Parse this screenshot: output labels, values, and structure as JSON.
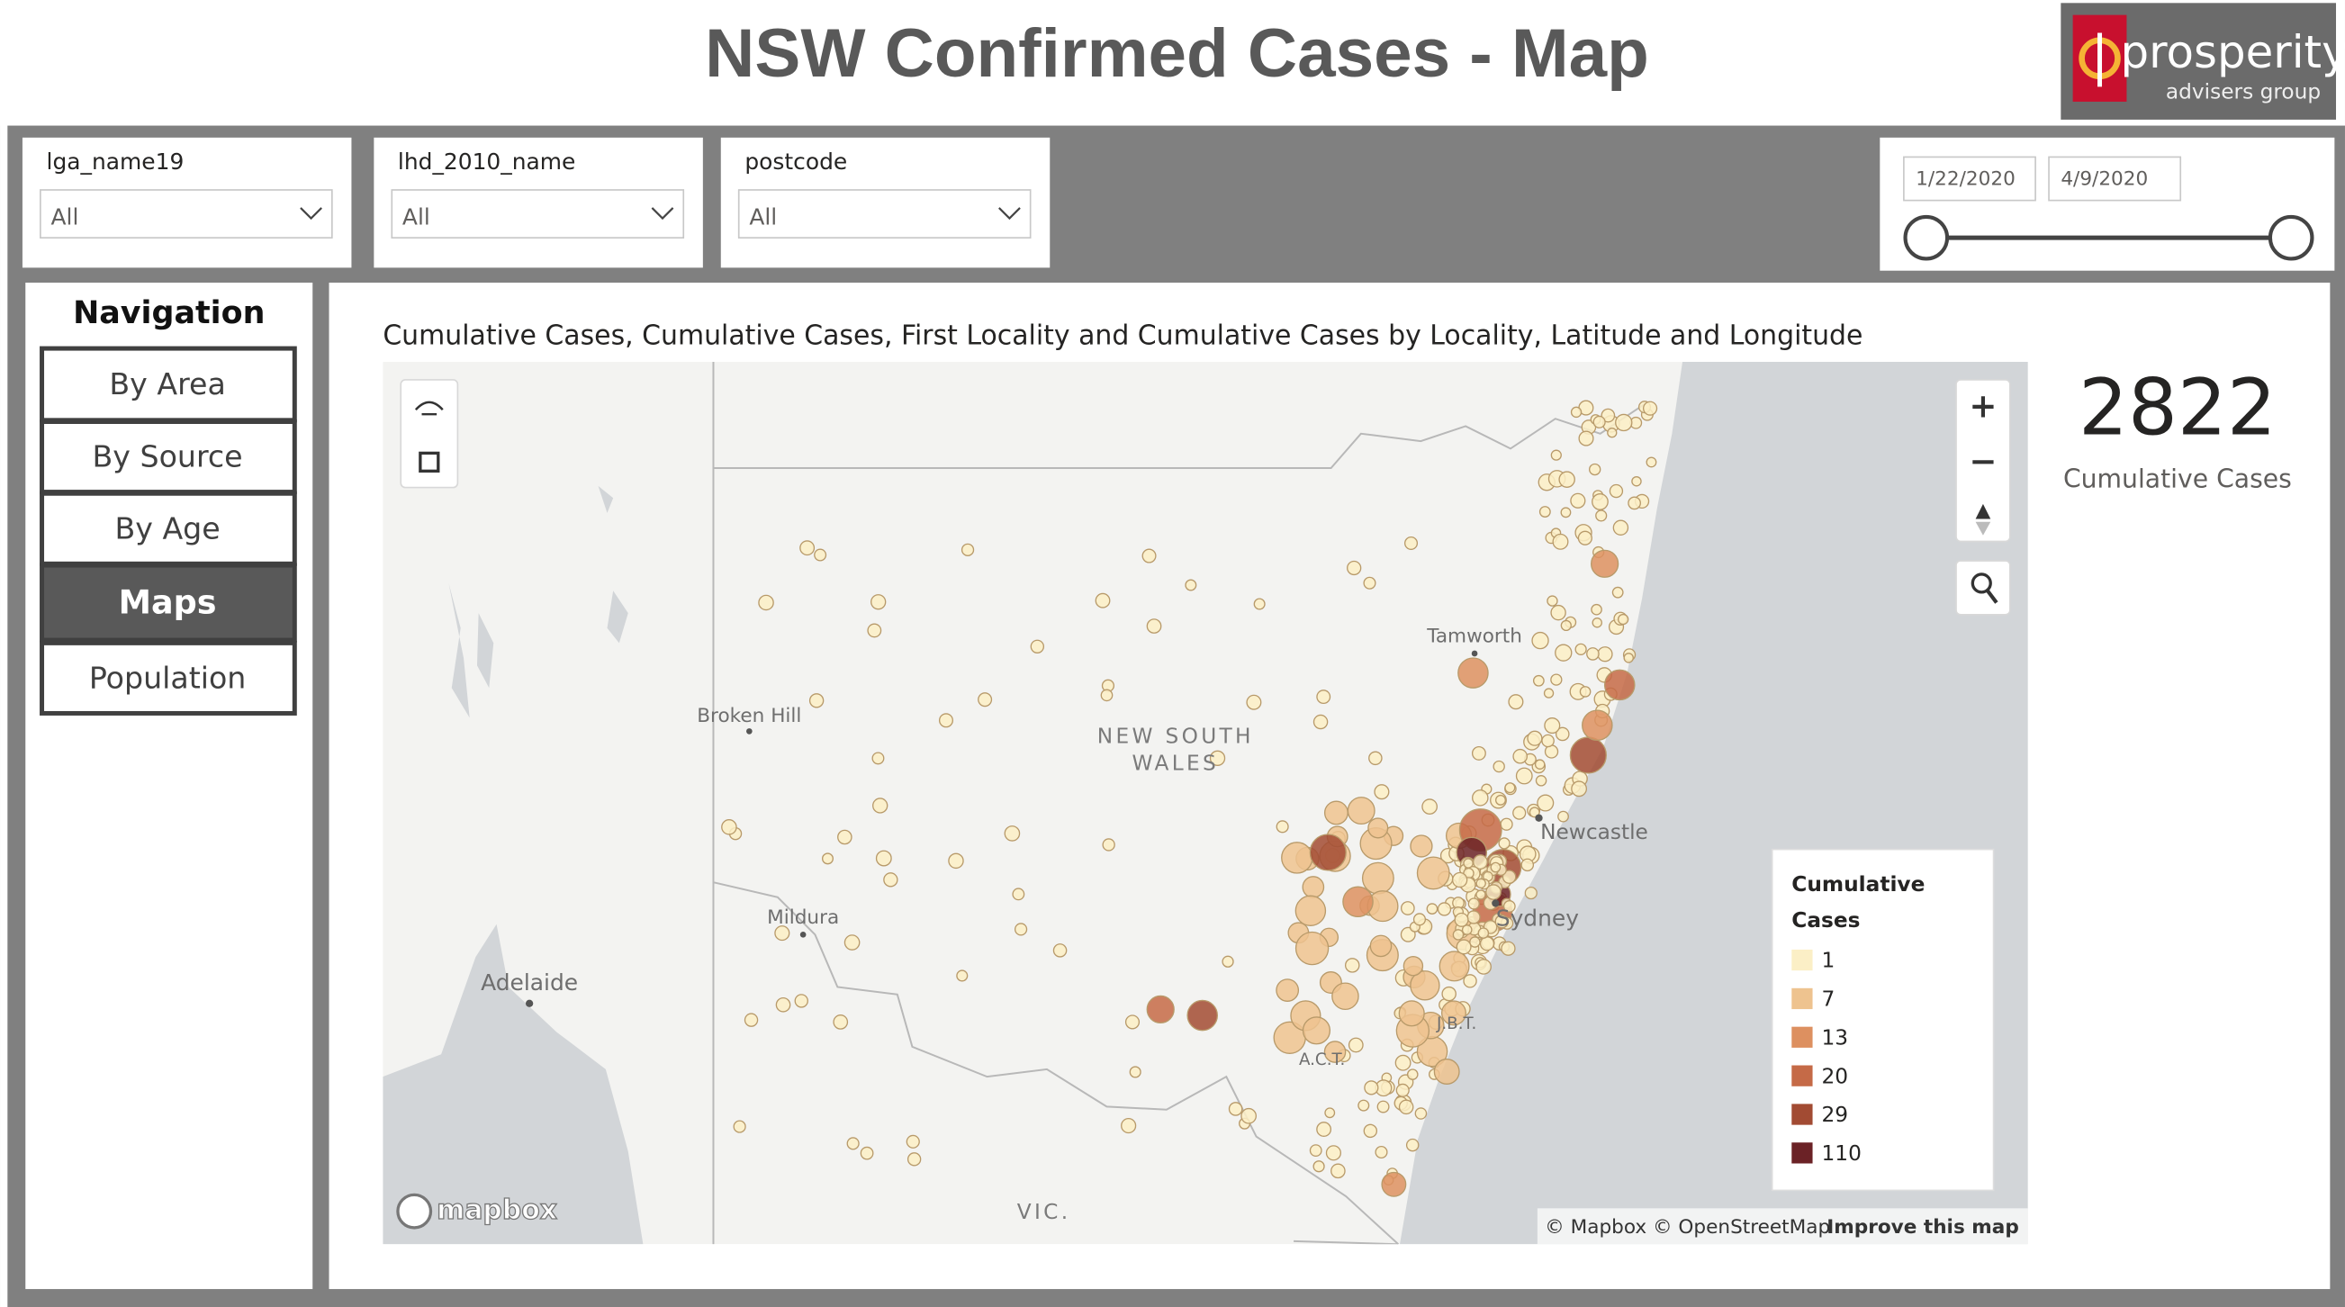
{
  "header": {
    "title": "NSW Confirmed Cases - Map",
    "logo_name": "prosperity",
    "logo_tagline": "advisers group"
  },
  "filters": [
    {
      "label": "lga_name19",
      "value": "All"
    },
    {
      "label": "lhd_2010_name",
      "value": "All"
    },
    {
      "label": "postcode",
      "value": "All"
    }
  ],
  "date_range": {
    "start": "1/22/2020",
    "end": "4/9/2020"
  },
  "navigation": {
    "title": "Navigation",
    "items": [
      "By Area",
      "By Source",
      "By Age",
      "Maps",
      "Population"
    ]
  },
  "map": {
    "title": "Cumulative Cases, Cumulative Cases, First Locality and Cumulative Cases by Locality, Latitude and Longitude",
    "labels": [
      "Broken Hill",
      "NEW SOUTH",
      "WALES",
      "Tamworth",
      "Newcastle",
      "Sydney",
      "Mildura",
      "Adelaide",
      "J.B.T.",
      "A.C.T.",
      "VIC."
    ],
    "legend": {
      "title_lines": [
        "Cumulative",
        "Cases"
      ],
      "items": [
        1,
        7,
        13,
        20,
        29,
        110
      ]
    },
    "brand": "mapbox",
    "attribution": "© Mapbox © OpenStreetMap",
    "improve": "Improve this map"
  },
  "kpi": {
    "value": 2822,
    "label": "Cumulative Cases"
  }
}
